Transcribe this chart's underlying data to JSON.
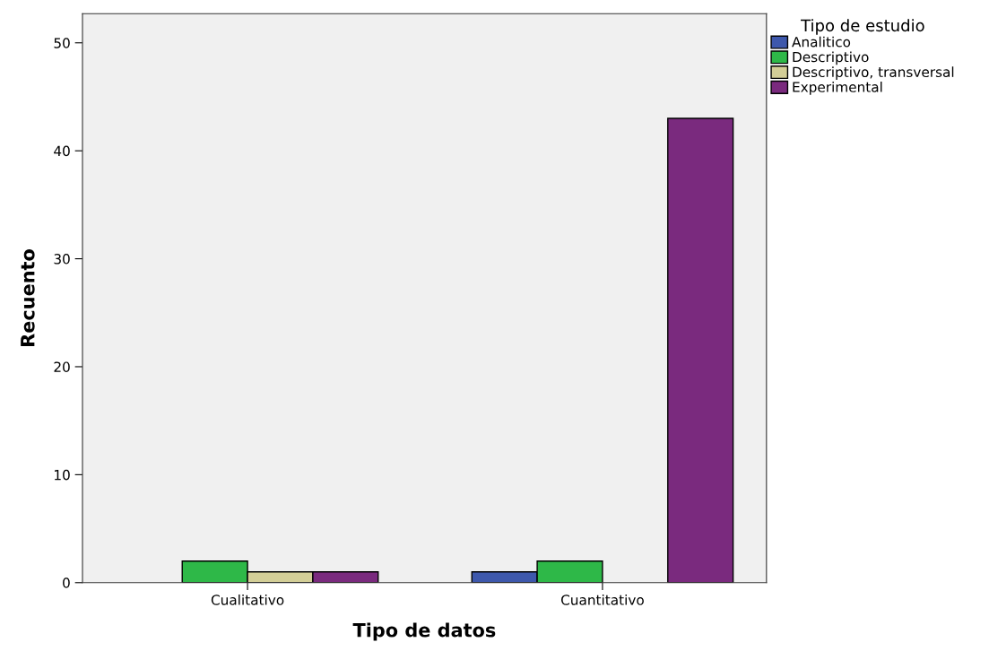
{
  "chart_data": {
    "type": "bar",
    "xlabel": "Tipo de datos",
    "ylabel": "Recuento",
    "legend_title": "Tipo de estudio",
    "categories": [
      "Cualitativo",
      "Cuantitativo"
    ],
    "series": [
      {
        "name": "Analitico",
        "color": "#3e58ac",
        "values": [
          null,
          1
        ]
      },
      {
        "name": "Descriptivo",
        "color": "#2eb848",
        "values": [
          2,
          2
        ]
      },
      {
        "name": "Descriptivo, transversal",
        "color": "#d3ce97",
        "values": [
          1,
          null
        ]
      },
      {
        "name": "Experimental",
        "color": "#7a2a7e",
        "values": [
          1,
          43
        ]
      }
    ],
    "ylim": [
      0,
      52.7
    ],
    "yticks": [
      0,
      10,
      20,
      30,
      40,
      50
    ],
    "grid": false,
    "legend": "top right"
  }
}
